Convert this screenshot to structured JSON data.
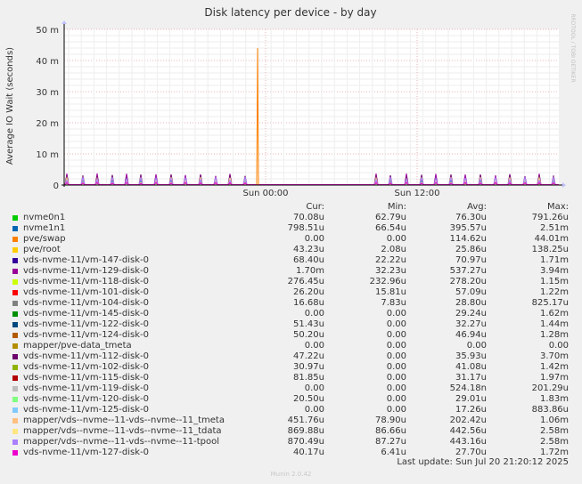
{
  "chart_data": {
    "type": "line",
    "title": "Disk latency per device - by day",
    "ylabel": "Average IO Wait (seconds)",
    "y_ticks": [
      "0",
      "10 m",
      "20 m",
      "30 m",
      "40 m",
      "50 m"
    ],
    "ylim": [
      0,
      0.05
    ],
    "x_ticks": [
      "Sun 00:00",
      "Sun 12:00"
    ],
    "grid": true,
    "watermark": "RRDTOOL / TOBI OETIKER",
    "legend_headers": [
      "Cur:",
      "Min:",
      "Avg:",
      "Max:"
    ],
    "series": [
      {
        "name": "nvme0n1",
        "color": "#00cc00",
        "cur": "70.08u",
        "min": "62.79u",
        "avg": "76.30u",
        "max": "791.26u"
      },
      {
        "name": "nvme1n1",
        "color": "#0066b3",
        "cur": "798.51u",
        "min": "66.54u",
        "avg": "395.57u",
        "max": "2.51m"
      },
      {
        "name": "pve/swap",
        "color": "#ff8000",
        "cur": "0.00",
        "min": "0.00",
        "avg": "114.62u",
        "max": "44.01m"
      },
      {
        "name": "pve/root",
        "color": "#ffcc00",
        "cur": "43.23u",
        "min": "2.08u",
        "avg": "25.86u",
        "max": "138.25u"
      },
      {
        "name": "vds-nvme-11/vm-147-disk-0",
        "color": "#330099",
        "cur": "68.40u",
        "min": "22.22u",
        "avg": "70.97u",
        "max": "1.71m"
      },
      {
        "name": "vds-nvme-11/vm-129-disk-0",
        "color": "#990099",
        "cur": "1.70m",
        "min": "32.23u",
        "avg": "537.27u",
        "max": "3.94m"
      },
      {
        "name": "vds-nvme-11/vm-118-disk-0",
        "color": "#ccff00",
        "cur": "276.45u",
        "min": "232.96u",
        "avg": "278.20u",
        "max": "1.15m"
      },
      {
        "name": "vds-nvme-11/vm-101-disk-0",
        "color": "#ff0000",
        "cur": "26.20u",
        "min": "15.81u",
        "avg": "57.09u",
        "max": "1.22m"
      },
      {
        "name": "vds-nvme-11/vm-104-disk-0",
        "color": "#808080",
        "cur": "16.68u",
        "min": "7.83u",
        "avg": "28.80u",
        "max": "825.17u"
      },
      {
        "name": "vds-nvme-11/vm-145-disk-0",
        "color": "#008f00",
        "cur": "0.00",
        "min": "0.00",
        "avg": "29.24u",
        "max": "1.62m"
      },
      {
        "name": "vds-nvme-11/vm-122-disk-0",
        "color": "#00487d",
        "cur": "51.43u",
        "min": "0.00",
        "avg": "32.27u",
        "max": "1.44m"
      },
      {
        "name": "vds-nvme-11/vm-124-disk-0",
        "color": "#b35a00",
        "cur": "50.20u",
        "min": "0.00",
        "avg": "46.94u",
        "max": "1.28m"
      },
      {
        "name": "mapper/pve-data_tmeta",
        "color": "#b38f00",
        "cur": "0.00",
        "min": "0.00",
        "avg": "0.00",
        "max": "0.00"
      },
      {
        "name": "vds-nvme-11/vm-112-disk-0",
        "color": "#6b006b",
        "cur": "47.22u",
        "min": "0.00",
        "avg": "35.93u",
        "max": "3.70m"
      },
      {
        "name": "vds-nvme-11/vm-102-disk-0",
        "color": "#8fb300",
        "cur": "30.97u",
        "min": "0.00",
        "avg": "41.08u",
        "max": "1.42m"
      },
      {
        "name": "vds-nvme-11/vm-115-disk-0",
        "color": "#b30000",
        "cur": "81.85u",
        "min": "0.00",
        "avg": "31.17u",
        "max": "1.97m"
      },
      {
        "name": "vds-nvme-11/vm-119-disk-0",
        "color": "#bebebe",
        "cur": "0.00",
        "min": "0.00",
        "avg": "524.18n",
        "max": "201.29u"
      },
      {
        "name": "vds-nvme-11/vm-120-disk-0",
        "color": "#80ff80",
        "cur": "20.50u",
        "min": "0.00",
        "avg": "29.01u",
        "max": "1.83m"
      },
      {
        "name": "vds-nvme-11/vm-125-disk-0",
        "color": "#80c9ff",
        "cur": "0.00",
        "min": "0.00",
        "avg": "17.26u",
        "max": "883.86u"
      },
      {
        "name": "mapper/vds--nvme--11-vds--nvme--11_tmeta",
        "color": "#ffc080",
        "cur": "451.76u",
        "min": "78.90u",
        "avg": "202.42u",
        "max": "1.06m"
      },
      {
        "name": "mapper/vds--nvme--11-vds--nvme--11_tdata",
        "color": "#ffe680",
        "cur": "869.88u",
        "min": "86.66u",
        "avg": "442.56u",
        "max": "2.58m"
      },
      {
        "name": "mapper/vds--nvme--11-vds--nvme--11-tpool",
        "color": "#aa80ff",
        "cur": "870.49u",
        "min": "87.27u",
        "avg": "443.16u",
        "max": "2.58m"
      },
      {
        "name": "vds-nvme-11/vm-127-disk-0",
        "color": "#ee00cc",
        "cur": "40.17u",
        "min": "6.41u",
        "avg": "27.70u",
        "max": "1.72m"
      }
    ]
  },
  "last_update": "Last update: Sun Jul 20 21:20:12 2025",
  "footer": "Munin 2.0.42"
}
